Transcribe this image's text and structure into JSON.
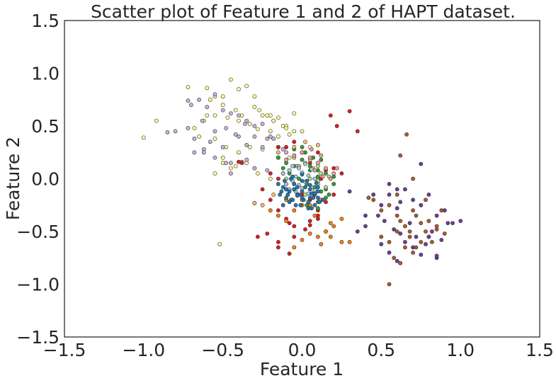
{
  "chart_data": {
    "type": "scatter",
    "title": "Scatter plot of Feature 1 and 2 of HAPT dataset.",
    "xlabel": "Feature 1",
    "ylabel": "Feature 2",
    "xlim": [
      -1.5,
      1.5
    ],
    "ylim": [
      -1.5,
      1.5
    ],
    "xticks": [
      -1.5,
      -1.0,
      -0.5,
      0.0,
      0.5,
      1.0,
      1.5
    ],
    "yticks": [
      -1.5,
      -1.0,
      -0.5,
      0.0,
      0.5,
      1.0,
      1.5
    ],
    "xtick_labels": [
      "−1.5",
      "−1.0",
      "−0.5",
      "0.0",
      "0.5",
      "1.0",
      "1.5"
    ],
    "ytick_labels": [
      "−1.5",
      "−1.0",
      "−0.5",
      "0.0",
      "0.5",
      "1.0",
      "1.5"
    ],
    "grid": false,
    "series": [
      {
        "color": "#ffff99",
        "x": [
          -0.72,
          -0.6,
          -0.55,
          -0.5,
          -0.45,
          -0.4,
          -0.35,
          -0.3,
          -0.27,
          -0.25,
          -0.2,
          -0.18,
          -0.15,
          -0.12,
          -0.1,
          -0.05,
          -0.92,
          -1.0,
          -0.65,
          -0.58,
          -0.5,
          -0.42,
          -0.38,
          -0.3,
          -0.22,
          -0.18,
          -0.1,
          -0.05,
          -0.68,
          -0.62,
          -0.55,
          -0.47,
          -0.4,
          -0.33,
          -0.28,
          -0.2,
          -0.15,
          -0.08,
          -0.55,
          -0.48,
          -0.4,
          -0.33,
          -0.25,
          -0.15,
          -0.5,
          -0.45,
          -0.35,
          -0.28,
          -0.2,
          -0.55,
          -0.6,
          -0.5,
          -0.42,
          -0.08,
          0.0,
          0.05,
          -0.52
        ],
        "y": [
          0.87,
          0.86,
          0.78,
          0.78,
          0.94,
          0.85,
          0.88,
          0.78,
          0.65,
          0.6,
          0.6,
          0.55,
          0.58,
          0.5,
          0.5,
          0.62,
          0.55,
          0.39,
          0.4,
          0.75,
          0.7,
          0.65,
          0.6,
          0.68,
          0.6,
          0.55,
          0.48,
          0.45,
          0.48,
          0.55,
          0.6,
          0.58,
          0.55,
          0.52,
          0.47,
          0.45,
          0.4,
          0.42,
          0.38,
          0.3,
          0.25,
          0.3,
          0.28,
          0.3,
          0.2,
          0.1,
          0.15,
          0.05,
          0.0,
          0.05,
          0.6,
          0.15,
          0.12,
          0.2,
          0.45,
          0.3,
          -0.62
        ]
      },
      {
        "color": "#cab2d6",
        "x": [
          -0.85,
          -0.8,
          -0.72,
          -0.7,
          -0.65,
          -0.6,
          -0.55,
          -0.5,
          -0.45,
          -0.4,
          -0.35,
          -0.3,
          -0.25,
          -0.2,
          -0.18,
          -0.15,
          -0.12,
          -0.1,
          -0.72,
          -0.63,
          -0.55,
          -0.48,
          -0.42,
          -0.36,
          -0.3,
          -0.22,
          -0.68,
          -0.58,
          -0.5,
          -0.4,
          -0.35,
          -0.25,
          -0.15,
          -0.68,
          -0.62,
          -0.55,
          -0.48,
          -0.35,
          -0.3,
          -0.22,
          -0.45,
          -0.38,
          -0.3,
          -0.62,
          -0.45
        ],
        "y": [
          0.44,
          0.45,
          0.74,
          0.7,
          0.75,
          0.68,
          0.8,
          0.65,
          0.62,
          0.6,
          0.55,
          0.5,
          0.52,
          0.4,
          0.38,
          0.3,
          0.28,
          0.25,
          0.48,
          0.55,
          0.45,
          0.48,
          0.42,
          0.52,
          0.4,
          0.38,
          0.38,
          0.35,
          0.3,
          0.4,
          0.32,
          0.3,
          0.2,
          0.25,
          0.28,
          0.2,
          0.15,
          0.18,
          0.1,
          0.08,
          0.15,
          0.16,
          0.1,
          0.25,
          0.05
        ]
      },
      {
        "color": "#e31a1c",
        "x": [
          -0.4,
          -0.38,
          0.18,
          0.22,
          0.3,
          0.35,
          -0.15,
          -0.1,
          -0.05,
          0.0,
          0.05,
          0.1,
          0.15,
          0.2,
          0.25,
          -0.2,
          -0.15,
          -0.1,
          -0.05,
          0.0,
          0.05,
          0.1,
          0.15,
          0.2,
          -0.25,
          -0.2,
          -0.15,
          -0.1,
          -0.05,
          0.05,
          0.1,
          0.15,
          -0.28,
          -0.22,
          -0.15,
          -0.08,
          0.02,
          0.1,
          -0.15,
          -0.05,
          0.05,
          0.08,
          0.12,
          -0.08
        ],
        "y": [
          0.16,
          0.15,
          0.6,
          0.5,
          0.64,
          0.45,
          0.3,
          0.3,
          0.35,
          0.25,
          0.15,
          0.25,
          0.08,
          0.1,
          0.05,
          0.05,
          0.0,
          -0.05,
          -0.1,
          -0.15,
          -0.2,
          -0.3,
          -0.22,
          -0.15,
          -0.1,
          -0.2,
          -0.3,
          -0.38,
          -0.45,
          -0.44,
          -0.38,
          -0.5,
          -0.55,
          -0.52,
          -0.6,
          -0.42,
          -0.48,
          -0.35,
          -0.65,
          -0.55,
          -0.4,
          -0.15,
          0.0,
          -0.71
        ]
      },
      {
        "color": "#ff7f00",
        "x": [
          -0.3,
          -0.2,
          -0.15,
          -0.1,
          -0.05,
          0.0,
          0.05,
          0.1,
          0.15,
          0.2,
          0.25,
          0.3,
          -0.05,
          0.0,
          0.05,
          0.12,
          0.18,
          -0.1,
          0.0,
          0.08,
          0.18,
          0.25
        ],
        "y": [
          -0.23,
          -0.3,
          -0.35,
          -0.4,
          -0.3,
          -0.2,
          -0.25,
          -0.55,
          -0.5,
          -0.45,
          -0.6,
          -0.6,
          -0.65,
          -0.58,
          -0.52,
          -0.62,
          -0.55,
          -0.2,
          -0.25,
          -0.35,
          -0.42,
          -0.38
        ]
      },
      {
        "color": "#b15928",
        "x": [
          0.42,
          0.45,
          0.5,
          0.55,
          0.6,
          0.62,
          0.65,
          0.68,
          0.7,
          0.72,
          0.75,
          0.78,
          0.8,
          0.82,
          0.85,
          0.88,
          0.5,
          0.55,
          0.6,
          0.65,
          0.7,
          0.75,
          0.8,
          0.85,
          0.9,
          0.58,
          0.62,
          0.68,
          0.72,
          0.78,
          0.55,
          0.62,
          0.7,
          0.66,
          0.6
        ],
        "y": [
          -0.18,
          -0.2,
          -0.3,
          -0.25,
          -0.35,
          -0.4,
          -0.45,
          -0.5,
          -0.3,
          -0.35,
          -0.42,
          -0.5,
          -0.55,
          -0.6,
          -0.48,
          -0.3,
          -0.55,
          -0.6,
          -0.5,
          -0.65,
          -0.7,
          -0.6,
          -0.4,
          -0.45,
          -0.52,
          -0.75,
          -0.8,
          -0.55,
          -0.65,
          -0.2,
          -1.0,
          0.22,
          0.0,
          0.42,
          -0.15
        ]
      },
      {
        "color": "#6a3d9a",
        "x": [
          0.3,
          0.4,
          0.45,
          0.5,
          0.55,
          0.6,
          0.65,
          0.7,
          0.75,
          0.8,
          0.85,
          0.9,
          0.95,
          1.0,
          0.35,
          0.4,
          0.48,
          0.52,
          0.58,
          0.62,
          0.68,
          0.72,
          0.78,
          0.82,
          0.88,
          0.92,
          0.5,
          0.55,
          0.6,
          0.65,
          0.7,
          0.75,
          0.8,
          0.85,
          0.75,
          0.6,
          0.55,
          0.62,
          0.85
        ],
        "y": [
          -0.12,
          -0.35,
          -0.15,
          -0.25,
          -0.15,
          -0.28,
          -0.1,
          -0.2,
          -0.25,
          -0.15,
          -0.35,
          -0.3,
          -0.42,
          -0.4,
          -0.5,
          -0.45,
          -0.35,
          -0.4,
          -0.48,
          -0.52,
          -0.42,
          -0.55,
          -0.62,
          -0.5,
          -0.58,
          -0.42,
          -0.62,
          -0.7,
          -0.78,
          -0.6,
          -0.65,
          -0.72,
          -0.55,
          -0.75,
          0.14,
          -0.1,
          -0.05,
          -0.22,
          -0.73
        ]
      },
      {
        "color": "#33a02c",
        "x": [
          -0.15,
          -0.1,
          -0.05,
          0.0,
          0.05,
          0.1,
          0.15,
          0.2,
          -0.12,
          -0.08,
          -0.02,
          0.03,
          0.08,
          0.12,
          0.17,
          -0.1,
          -0.03,
          0.05,
          0.1,
          0.15,
          -0.05,
          0.0,
          0.02,
          0.07,
          0.12,
          -0.07,
          0.03,
          0.1,
          0.15,
          0.2,
          -0.12,
          -0.05,
          0.05,
          0.1
        ],
        "y": [
          0.2,
          0.15,
          0.22,
          0.18,
          0.12,
          0.08,
          0.05,
          0.02,
          0.1,
          0.05,
          0.0,
          -0.05,
          -0.08,
          -0.12,
          -0.15,
          -0.1,
          -0.15,
          -0.18,
          -0.22,
          -0.1,
          0.28,
          0.3,
          0.25,
          0.2,
          0.18,
          -0.2,
          -0.25,
          -0.28,
          -0.18,
          -0.05,
          0.05,
          0.12,
          0.08,
          0.02
        ]
      },
      {
        "color": "#b2df8a",
        "x": [
          -0.08,
          -0.03,
          0.02,
          0.07,
          0.12,
          0.17,
          -0.1,
          -0.05,
          0.0,
          0.05,
          0.1,
          0.15,
          -0.05,
          0.0,
          0.05,
          0.1,
          0.08,
          0.02
        ],
        "y": [
          0.08,
          0.12,
          0.15,
          0.1,
          0.05,
          0.02,
          0.0,
          -0.05,
          0.05,
          0.0,
          -0.02,
          -0.08,
          0.2,
          0.25,
          0.18,
          0.12,
          -0.12,
          -0.15
        ]
      },
      {
        "color": "#fb9a99",
        "x": [
          -0.1,
          -0.05,
          0.0,
          0.05,
          0.1,
          0.15,
          0.2,
          -0.12,
          -0.02,
          0.08,
          0.13,
          0.18,
          0.22,
          0.06,
          0.12
        ],
        "y": [
          0.18,
          0.22,
          0.25,
          0.2,
          0.15,
          0.1,
          0.05,
          0.05,
          0.12,
          0.08,
          0.02,
          0.0,
          0.1,
          0.28,
          0.22
        ]
      },
      {
        "color": "#fdbf6f",
        "x": [
          -0.3,
          -0.25,
          -0.18,
          -0.05,
          0.02,
          0.1,
          0.12,
          -0.15
        ],
        "y": [
          -0.23,
          -0.25,
          -0.15,
          0.3,
          0.35,
          0.32,
          -0.2,
          0.25
        ]
      },
      {
        "color": "#a6cee3",
        "x": [
          -0.12,
          -0.08,
          -0.04,
          0.0,
          0.04,
          0.08,
          -0.1,
          -0.06,
          -0.02,
          0.02,
          0.06,
          0.1,
          -0.08,
          -0.04,
          0.0,
          0.04,
          0.08,
          -0.06,
          -0.02,
          0.02,
          0.06
        ],
        "y": [
          0.05,
          0.08,
          0.02,
          0.06,
          0.03,
          0.0,
          -0.05,
          -0.02,
          -0.06,
          -0.03,
          -0.08,
          -0.05,
          -0.1,
          -0.12,
          -0.09,
          -0.14,
          -0.11,
          0.12,
          0.1,
          0.14,
          0.09
        ]
      },
      {
        "color": "#1f78b4",
        "x": [
          -0.15,
          -0.12,
          -0.08,
          -0.05,
          -0.02,
          0.0,
          0.02,
          0.05,
          0.08,
          0.1,
          -0.14,
          -0.1,
          -0.06,
          -0.03,
          0.01,
          0.04,
          0.07,
          0.1,
          0.13,
          -0.12,
          -0.08,
          -0.04,
          0.0,
          0.04,
          0.08,
          0.11,
          -0.1,
          -0.05,
          0.0,
          0.05,
          0.09,
          -0.13,
          -0.09,
          -0.03,
          0.03,
          0.06,
          0.1,
          -0.07,
          -0.01,
          0.05,
          -0.11,
          -0.06,
          0.0,
          0.06
        ],
        "y": [
          -0.05,
          -0.08,
          -0.12,
          -0.1,
          -0.15,
          -0.12,
          -0.08,
          -0.1,
          -0.14,
          -0.18,
          -0.15,
          -0.18,
          -0.2,
          -0.16,
          -0.2,
          -0.22,
          -0.18,
          -0.12,
          -0.2,
          -0.25,
          -0.22,
          -0.25,
          -0.18,
          -0.28,
          -0.25,
          -0.22,
          -0.1,
          -0.05,
          -0.02,
          -0.06,
          -0.04,
          -0.12,
          -0.15,
          -0.08,
          -0.02,
          -0.14,
          -0.08,
          0.0,
          -0.25,
          -0.18,
          -0.02,
          0.02,
          0.04,
          -0.28
        ]
      }
    ]
  }
}
